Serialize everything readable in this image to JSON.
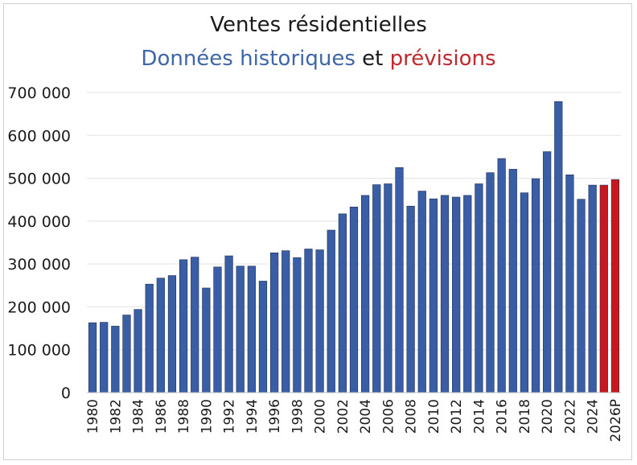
{
  "chart_data": {
    "type": "bar",
    "title": "Ventes résidentielles",
    "subtitle": {
      "part1": "Données historiques",
      "part2": "et",
      "part3": "prévisions"
    },
    "xlabel": "",
    "ylabel": "",
    "ylim": [
      0,
      700000
    ],
    "yticks": [
      0,
      100000,
      200000,
      300000,
      400000,
      500000,
      600000,
      700000
    ],
    "ytick_labels": [
      "0",
      "100 000",
      "200 000",
      "300 000",
      "400 000",
      "500 000",
      "600 000",
      "700 000"
    ],
    "grid": true,
    "colors": {
      "historical": "#3a5ea5",
      "forecast": "#c8171f",
      "grid": "#e3e3e3",
      "text": "#1a1a1a"
    },
    "categories": [
      "1980",
      "1981",
      "1982",
      "1983",
      "1984",
      "1985",
      "1986",
      "1987",
      "1988",
      "1989",
      "1990",
      "1991",
      "1992",
      "1993",
      "1994",
      "1995",
      "1996",
      "1997",
      "1998",
      "1999",
      "2000",
      "2001",
      "2002",
      "2003",
      "2004",
      "2005",
      "2006",
      "2007",
      "2008",
      "2009",
      "2010",
      "2011",
      "2012",
      "2013",
      "2014",
      "2015",
      "2016",
      "2017",
      "2018",
      "2019",
      "2020",
      "2021",
      "2022",
      "2023",
      "2024",
      "2025P",
      "2026P"
    ],
    "values": [
      163000,
      164000,
      155000,
      181000,
      194000,
      253000,
      267000,
      273000,
      310000,
      316000,
      244000,
      293000,
      319000,
      295000,
      295000,
      260000,
      326000,
      331000,
      315000,
      335000,
      333000,
      379000,
      417000,
      433000,
      460000,
      485000,
      487000,
      525000,
      435000,
      470000,
      452000,
      460000,
      456000,
      460000,
      487000,
      513000,
      546000,
      521000,
      466000,
      499000,
      562000,
      679000,
      508000,
      451000,
      484000,
      484000,
      497000
    ],
    "forecast_from_index": 45,
    "tick_every": 2
  }
}
